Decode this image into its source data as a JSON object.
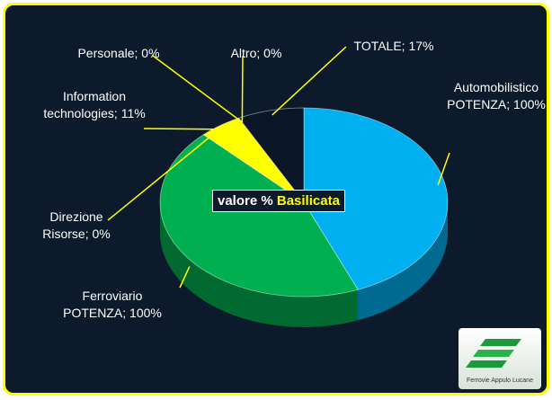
{
  "chart_data": {
    "type": "pie3d",
    "values": [
      100,
      100,
      0,
      11,
      0,
      0,
      17
    ],
    "value_labels": [
      "Automobilistico POTENZA; 100%",
      "Ferroviario POTENZA; 100%",
      "Direzione Risorse; 0%",
      "Information technologies; 11%",
      "Personale; 0%",
      "Altro; 0%",
      "TOTALE; 17%"
    ],
    "colors": [
      "#00b0f0",
      "#00b050",
      "#7f7f7f",
      "#ffff00",
      "#c00000",
      "#7030a0",
      "#0a1626"
    ],
    "center_label": {
      "prefix": "valore %",
      "highlight": "Basilicata"
    },
    "logo_text": "Ferrovie Appulo Lucane"
  }
}
